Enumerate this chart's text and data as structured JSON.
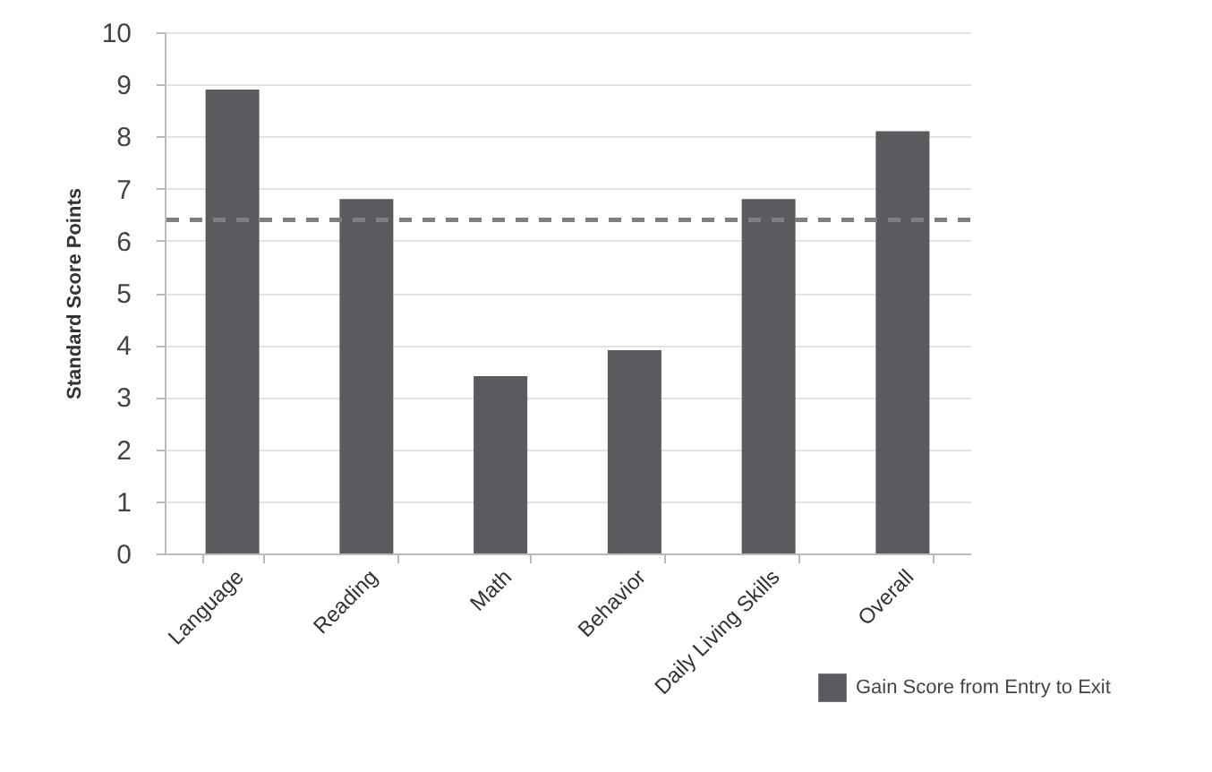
{
  "chart_data": {
    "type": "bar",
    "ylabel": "Standard Score Points",
    "categories": [
      "Language",
      "Reading",
      "Math",
      "Behavior",
      "Daily Living Skills",
      "Overall"
    ],
    "series": [
      {
        "name": "Gain Score from Entry to Exit",
        "color": "#5a5b5e",
        "values": [
          8.9,
          6.8,
          3.4,
          3.9,
          6.8,
          8.1
        ]
      }
    ],
    "ylim": [
      0,
      10
    ],
    "yticks": [
      0,
      1,
      2,
      3,
      4,
      5,
      6,
      7,
      8,
      9,
      10
    ],
    "grid": "y",
    "legend": "bottom right",
    "ref_lines": [
      {
        "axis": "y",
        "value": 6.4,
        "color": "#7f7f7f",
        "line_style": "dashed"
      }
    ]
  }
}
